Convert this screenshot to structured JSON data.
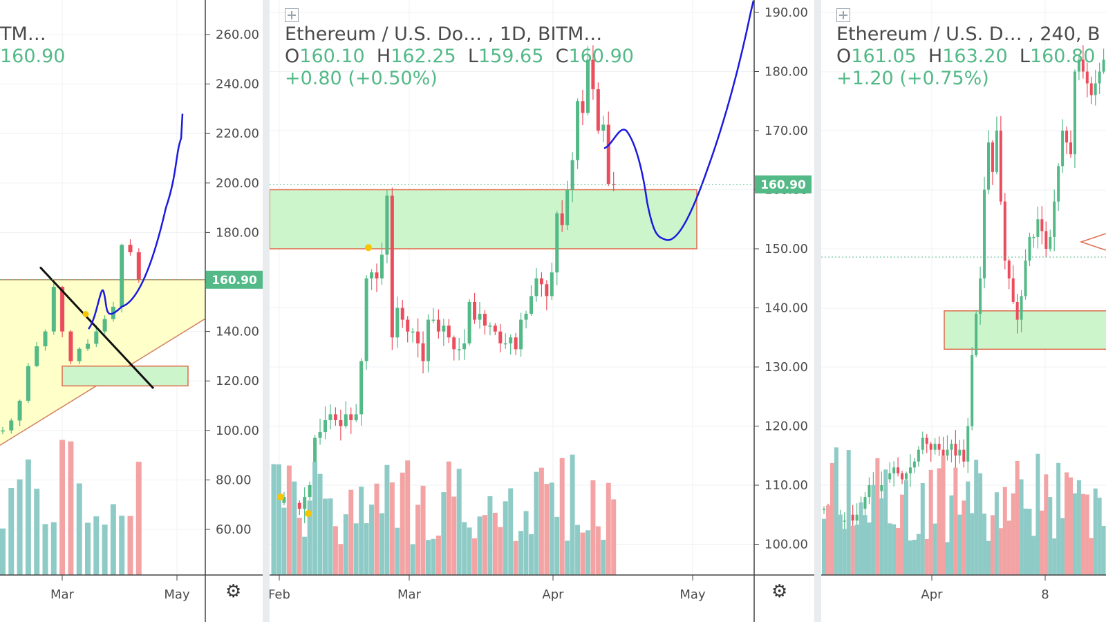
{
  "panels": {
    "left": {
      "title": "TM…",
      "close": "160.90",
      "axis_labels": [
        "260.00",
        "240.00",
        "220.00",
        "200.00",
        "180.00",
        "160.00",
        "140.00",
        "120.00",
        "100.00",
        "80.00",
        "60.00"
      ],
      "time_labels": [
        "Mar",
        "May"
      ],
      "price_tag": "160.90",
      "settings_icon": "gear-icon"
    },
    "middle": {
      "title": "Ethereum / U.S. Do… , 1D, BITM…",
      "open_label": "O",
      "open": "160.10",
      "high_label": "H",
      "high": "162.25",
      "low_label": "L",
      "low": "159.65",
      "close_label": "C",
      "close": "160.90",
      "change": "+0.80 (+0.50%)",
      "axis_labels": [
        "190.00",
        "180.00",
        "170.00",
        "160.00",
        "150.00",
        "140.00",
        "130.00",
        "120.00",
        "110.00",
        "100.00"
      ],
      "time_labels": [
        "Feb",
        "Mar",
        "Apr",
        "May"
      ],
      "price_tag": "160.90",
      "settings_icon": "gear-icon"
    },
    "right": {
      "title": "Ethereum / U.S. D… , 240, B",
      "open_label": "O",
      "open": "161.05",
      "high_label": "H",
      "high": "163.20",
      "low_label": "L",
      "low": "160.80",
      "change": "+1.20 (+0.75%)",
      "time_labels": [
        "Apr",
        "8"
      ]
    }
  },
  "colors": {
    "up": "#53b987",
    "down": "#eb4d5c",
    "up_volume": "#8fcbc6",
    "down_volume": "#f3a3a3",
    "zone_fill": "#ccf5cc",
    "zone_stroke": "#e06a4a",
    "triangle_fill": "#ffffbf",
    "drawing": "#1a1adf",
    "price_tag": "#53b987"
  },
  "chart_data": [
    {
      "type": "candlestick",
      "title": "TM…",
      "ylim": [
        50,
        270
      ],
      "x_ticks": [
        "Mar",
        "May"
      ],
      "last_close": 160.9,
      "closes_approx": [
        100,
        104,
        112,
        126,
        134,
        140,
        158,
        140,
        128,
        133,
        135,
        140,
        145,
        150,
        175,
        172,
        160.9
      ]
    },
    {
      "type": "candlestick",
      "title": "Ethereum / U.S. Do… , 1D, BITM…",
      "ylim": [
        96,
        192
      ],
      "x_ticks": [
        "Feb",
        "Mar",
        "Apr",
        "May"
      ],
      "ohlc_last": {
        "open": 160.1,
        "high": 162.25,
        "low": 159.65,
        "close": 160.9
      },
      "change": "+0.80 (+0.50%)",
      "support_zone": [
        150,
        160
      ],
      "closes_approx": [
        107,
        107,
        108,
        107,
        107,
        106,
        108,
        110,
        118,
        119,
        121,
        122,
        121,
        120,
        122,
        121,
        122,
        131,
        145,
        146,
        145,
        149,
        159,
        135,
        140,
        138,
        136,
        136,
        134,
        131,
        138,
        138,
        136,
        137,
        135,
        133,
        133,
        134,
        141,
        138,
        139,
        137,
        137,
        136,
        134,
        134,
        135,
        133,
        138,
        139,
        142,
        145,
        144,
        142,
        146,
        156,
        154,
        160,
        165,
        175,
        173,
        182,
        177,
        170,
        171,
        161,
        160.9
      ]
    },
    {
      "type": "candlestick",
      "title": "Ethereum / U.S. D… , 240, B",
      "ohlc_last": {
        "open": 161.05,
        "high": 163.2,
        "low": 160.8
      },
      "change": "+1.20 (+0.75%)",
      "x_ticks": [
        "Apr",
        "8"
      ]
    }
  ]
}
